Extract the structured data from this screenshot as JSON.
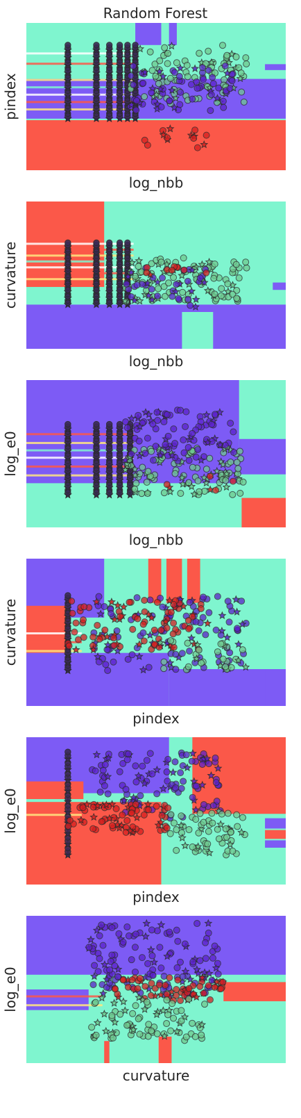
{
  "figure": {
    "title": "Random Forest"
  },
  "colors": {
    "class_a_region": "#7d5bf5",
    "class_b_region": "#7ff5cf",
    "class_c_region": "#fb5849",
    "class_a_point": "#5b22c9",
    "class_b_point": "#6fc98f",
    "class_c_point": "#d61f1f",
    "edge": "#2a2a2a"
  },
  "chart_data": [
    {
      "type": "scatter",
      "xlabel": "log_nbb",
      "ylabel": "pindex",
      "xlim": [
        0,
        1
      ],
      "ylim": [
        0,
        1
      ],
      "grid": false,
      "regions": [
        {
          "cls": "b",
          "x": [
            0.0,
            1.0
          ],
          "y": [
            0.0,
            1.0
          ]
        },
        {
          "cls": "a",
          "x": [
            0.0,
            1.0
          ],
          "y": [
            0.35,
            0.62
          ]
        },
        {
          "cls": "a",
          "x": [
            0.42,
            0.52
          ],
          "y": [
            0.85,
            1.0
          ]
        },
        {
          "cls": "a",
          "x": [
            0.55,
            0.58
          ],
          "y": [
            0.85,
            1.0
          ]
        },
        {
          "cls": "a",
          "x": [
            0.92,
            1.0
          ],
          "y": [
            0.68,
            0.72
          ]
        },
        {
          "cls": "c",
          "x": [
            0.0,
            1.0
          ],
          "y": [
            0.0,
            0.34
          ]
        }
      ],
      "stripe_bands": [
        0.42,
        0.47,
        0.52,
        0.57,
        0.62,
        0.73,
        0.8
      ],
      "columns": [
        0.16,
        0.27,
        0.32,
        0.36,
        0.39,
        0.42
      ],
      "cloud": {
        "x": [
          0.36,
          0.85
        ],
        "y": [
          0.35,
          0.85
        ]
      },
      "clusters": [
        {
          "cls": "b",
          "n": 90,
          "x": [
            0.4,
            0.85
          ],
          "y": [
            0.45,
            0.85
          ]
        },
        {
          "cls": "a",
          "n": 70,
          "x": [
            0.4,
            0.8
          ],
          "y": [
            0.4,
            0.72
          ]
        },
        {
          "cls": "c",
          "n": 14,
          "x": [
            0.45,
            0.7
          ],
          "y": [
            0.15,
            0.3
          ]
        }
      ]
    },
    {
      "type": "scatter",
      "xlabel": "log_nbb",
      "ylabel": "curvature",
      "xlim": [
        0,
        1
      ],
      "ylim": [
        0,
        1
      ],
      "grid": false,
      "regions": [
        {
          "cls": "b",
          "x": [
            0.0,
            1.0
          ],
          "y": [
            0.0,
            1.0
          ]
        },
        {
          "cls": "c",
          "x": [
            0.0,
            0.3
          ],
          "y": [
            0.42,
            1.0
          ]
        },
        {
          "cls": "a",
          "x": [
            0.0,
            1.0
          ],
          "y": [
            0.0,
            0.3
          ]
        },
        {
          "cls": "b",
          "x": [
            0.6,
            0.72
          ],
          "y": [
            0.0,
            0.25
          ]
        },
        {
          "cls": "a",
          "x": [
            0.95,
            1.0
          ],
          "y": [
            0.4,
            0.45
          ]
        }
      ],
      "stripe_bands": [
        0.48,
        0.52,
        0.56,
        0.6,
        0.64,
        0.68,
        0.72
      ],
      "columns": [
        0.16,
        0.27,
        0.32,
        0.36,
        0.39
      ],
      "cloud": {
        "x": [
          0.36,
          0.85
        ],
        "y": [
          0.3,
          0.72
        ]
      },
      "clusters": [
        {
          "cls": "b",
          "n": 100,
          "x": [
            0.38,
            0.85
          ],
          "y": [
            0.32,
            0.62
          ]
        },
        {
          "cls": "a",
          "n": 40,
          "x": [
            0.38,
            0.7
          ],
          "y": [
            0.28,
            0.55
          ]
        },
        {
          "cls": "c",
          "n": 10,
          "x": [
            0.45,
            0.7
          ],
          "y": [
            0.5,
            0.58
          ]
        }
      ]
    },
    {
      "type": "scatter",
      "xlabel": "log_nbb",
      "ylabel": "log_e0",
      "xlim": [
        0,
        1
      ],
      "ylim": [
        0,
        1
      ],
      "grid": false,
      "regions": [
        {
          "cls": "b",
          "x": [
            0.0,
            1.0
          ],
          "y": [
            0.0,
            1.0
          ]
        },
        {
          "cls": "a",
          "x": [
            0.0,
            0.82
          ],
          "y": [
            0.3,
            1.0
          ]
        },
        {
          "cls": "a",
          "x": [
            0.82,
            1.0
          ],
          "y": [
            0.36,
            0.6
          ]
        },
        {
          "cls": "c",
          "x": [
            0.83,
            1.0
          ],
          "y": [
            0.0,
            0.2
          ]
        }
      ],
      "stripe_bands": [
        0.36,
        0.42,
        0.48,
        0.53,
        0.58,
        0.64
      ],
      "columns": [
        0.16,
        0.27,
        0.32,
        0.36,
        0.4
      ],
      "cloud": {
        "x": [
          0.36,
          0.85
        ],
        "y": [
          0.22,
          0.7
        ]
      },
      "clusters": [
        {
          "cls": "b",
          "n": 110,
          "x": [
            0.38,
            0.85
          ],
          "y": [
            0.22,
            0.55
          ]
        },
        {
          "cls": "a",
          "n": 90,
          "x": [
            0.38,
            0.8
          ],
          "y": [
            0.45,
            0.8
          ]
        },
        {
          "cls": "c",
          "n": 6,
          "x": [
            0.5,
            0.8
          ],
          "y": [
            0.25,
            0.4
          ]
        }
      ]
    },
    {
      "type": "scatter",
      "xlabel": "pindex",
      "ylabel": "curvature",
      "xlim": [
        0,
        1
      ],
      "ylim": [
        0,
        1
      ],
      "grid": false,
      "regions": [
        {
          "cls": "b",
          "x": [
            0.0,
            1.0
          ],
          "y": [
            0.0,
            1.0
          ]
        },
        {
          "cls": "a",
          "x": [
            0.0,
            0.3
          ],
          "y": [
            0.6,
            1.0
          ]
        },
        {
          "cls": "c",
          "x": [
            0.0,
            0.16
          ],
          "y": [
            0.36,
            0.68
          ]
        },
        {
          "cls": "a",
          "x": [
            0.0,
            0.55
          ],
          "y": [
            0.0,
            0.36
          ]
        },
        {
          "cls": "a",
          "x": [
            0.55,
            1.0
          ],
          "y": [
            0.0,
            0.25
          ]
        },
        {
          "cls": "c",
          "x": [
            0.47,
            0.52
          ],
          "y": [
            0.7,
            1.0
          ]
        },
        {
          "cls": "c",
          "x": [
            0.54,
            0.6
          ],
          "y": [
            0.7,
            1.0
          ]
        },
        {
          "cls": "c",
          "x": [
            0.62,
            0.67
          ],
          "y": [
            0.7,
            1.0
          ]
        },
        {
          "cls": "a",
          "x": [
            0.92,
            1.0
          ],
          "y": [
            0.0,
            0.25
          ]
        }
      ],
      "stripe_bands": [
        0.38,
        0.44,
        0.5
      ],
      "columns": [
        0.16
      ],
      "cloud": {
        "x": [
          0.16,
          0.85
        ],
        "y": [
          0.24,
          0.75
        ]
      },
      "clusters": [
        {
          "cls": "a",
          "n": 120,
          "x": [
            0.25,
            0.85
          ],
          "y": [
            0.24,
            0.75
          ]
        },
        {
          "cls": "c",
          "n": 90,
          "x": [
            0.16,
            0.7
          ],
          "y": [
            0.38,
            0.72
          ]
        },
        {
          "cls": "b",
          "n": 30,
          "x": [
            0.5,
            0.85
          ],
          "y": [
            0.24,
            0.45
          ]
        }
      ]
    },
    {
      "type": "scatter",
      "xlabel": "pindex",
      "ylabel": "log_e0",
      "xlim": [
        0,
        1
      ],
      "ylim": [
        0,
        1
      ],
      "grid": false,
      "regions": [
        {
          "cls": "b",
          "x": [
            0.0,
            1.0
          ],
          "y": [
            0.0,
            1.0
          ]
        },
        {
          "cls": "a",
          "x": [
            0.0,
            0.55
          ],
          "y": [
            0.62,
            1.0
          ]
        },
        {
          "cls": "c",
          "x": [
            0.0,
            0.22
          ],
          "y": [
            0.58,
            0.7
          ]
        },
        {
          "cls": "c",
          "x": [
            0.0,
            0.52
          ],
          "y": [
            0.0,
            0.56
          ]
        },
        {
          "cls": "c",
          "x": [
            0.64,
            1.0
          ],
          "y": [
            0.48,
            1.0
          ]
        },
        {
          "cls": "a",
          "x": [
            0.92,
            1.0
          ],
          "y": [
            0.25,
            0.3
          ]
        },
        {
          "cls": "a",
          "x": [
            0.92,
            1.0
          ],
          "y": [
            0.38,
            0.45
          ]
        },
        {
          "cls": "c",
          "x": [
            0.92,
            1.0
          ],
          "y": [
            0.31,
            0.37
          ]
        }
      ],
      "stripe_bands": [
        0.48,
        0.56
      ],
      "columns": [
        0.16
      ],
      "cloud": {
        "x": [
          0.16,
          0.85
        ],
        "y": [
          0.2,
          0.9
        ]
      },
      "clusters": [
        {
          "cls": "a",
          "n": 110,
          "x": [
            0.25,
            0.75
          ],
          "y": [
            0.45,
            0.9
          ]
        },
        {
          "cls": "c",
          "n": 70,
          "x": [
            0.16,
            0.55
          ],
          "y": [
            0.35,
            0.55
          ]
        },
        {
          "cls": "b",
          "n": 60,
          "x": [
            0.55,
            0.85
          ],
          "y": [
            0.2,
            0.5
          ]
        }
      ]
    },
    {
      "type": "scatter",
      "xlabel": "curvature",
      "ylabel": "log_e0",
      "xlim": [
        0,
        1
      ],
      "ylim": [
        0,
        1
      ],
      "grid": false,
      "regions": [
        {
          "cls": "b",
          "x": [
            0.0,
            1.0
          ],
          "y": [
            0.0,
            1.0
          ]
        },
        {
          "cls": "a",
          "x": [
            0.0,
            1.0
          ],
          "y": [
            0.6,
            1.0
          ]
        },
        {
          "cls": "a",
          "x": [
            0.0,
            0.24
          ],
          "y": [
            0.36,
            0.5
          ]
        },
        {
          "cls": "c",
          "x": [
            0.76,
            1.0
          ],
          "y": [
            0.42,
            0.55
          ]
        },
        {
          "cls": "c",
          "x": [
            0.3,
            0.32
          ],
          "y": [
            0.0,
            0.15
          ]
        },
        {
          "cls": "c",
          "x": [
            0.51,
            0.56
          ],
          "y": [
            0.0,
            0.18
          ]
        }
      ],
      "stripe_bands": [
        0.4,
        0.46
      ],
      "columns": [],
      "cloud": {
        "x": [
          0.24,
          0.76
        ],
        "y": [
          0.15,
          0.95
        ]
      },
      "clusters": [
        {
          "cls": "a",
          "n": 140,
          "x": [
            0.24,
            0.76
          ],
          "y": [
            0.45,
            0.95
          ]
        },
        {
          "cls": "c",
          "n": 60,
          "x": [
            0.32,
            0.76
          ],
          "y": [
            0.42,
            0.58
          ]
        },
        {
          "cls": "b",
          "n": 80,
          "x": [
            0.24,
            0.7
          ],
          "y": [
            0.15,
            0.45
          ]
        }
      ]
    }
  ]
}
